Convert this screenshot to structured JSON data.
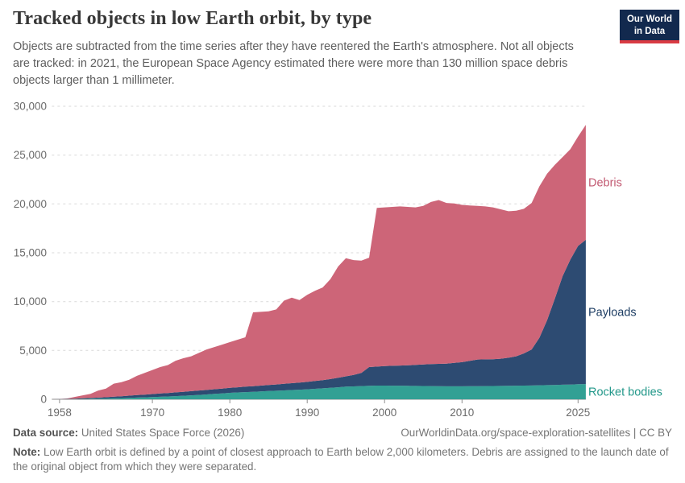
{
  "header": {
    "title": "Tracked objects in low Earth orbit, by type",
    "subtitle": "Objects are subtracted from the time series after they have reentered the Earth's atmosphere. Not all objects are tracked: in 2021, the European Space Agency estimated there were more than 130 million space debris objects larger than 1 millimeter.",
    "logo": {
      "line1": "Our World",
      "line2": "in Data"
    }
  },
  "footer": {
    "source_label": "Data source:",
    "source_value": "United States Space Force (2026)",
    "attribution": "OurWorldinData.org/space-exploration-satellites | CC BY",
    "note_label": "Note:",
    "note_value": "Low Earth orbit is defined by a point of closest approach to Earth below 2,000 kilometers. Debris are assigned to the launch date of the original object from which they were separated."
  },
  "colors": {
    "grid": "#d9d9d9",
    "axis": "#8f8f8f",
    "tick_text": "#6b6b6b",
    "logo_bg": "#12294e",
    "logo_bar": "#d93b43"
  },
  "chart_data": {
    "type": "area",
    "stacked": true,
    "title": "Tracked objects in low Earth orbit, by type",
    "xlabel": "",
    "ylabel": "",
    "xlim": [
      1957,
      2026
    ],
    "ylim": [
      0,
      30000
    ],
    "grid": "dashed horizontal",
    "legend": "labels at right edge of areas",
    "xticks": [
      1958,
      1970,
      1980,
      1990,
      2000,
      2010,
      2025
    ],
    "ytick_values": [
      0,
      5000,
      10000,
      15000,
      20000,
      25000,
      30000
    ],
    "ytick_labels": [
      "0",
      "5,000",
      "10,000",
      "15,000",
      "20,000",
      "25,000",
      "30,000"
    ],
    "x": [
      1957,
      1958,
      1959,
      1960,
      1961,
      1962,
      1963,
      1964,
      1965,
      1966,
      1967,
      1968,
      1969,
      1970,
      1971,
      1972,
      1973,
      1974,
      1975,
      1976,
      1977,
      1978,
      1979,
      1980,
      1981,
      1982,
      1983,
      1984,
      1985,
      1986,
      1987,
      1988,
      1989,
      1990,
      1991,
      1992,
      1993,
      1994,
      1995,
      1996,
      1997,
      1998,
      1999,
      2000,
      2001,
      2002,
      2003,
      2004,
      2005,
      2006,
      2007,
      2008,
      2009,
      2010,
      2011,
      2012,
      2013,
      2014,
      2015,
      2016,
      2017,
      2018,
      2019,
      2020,
      2021,
      2022,
      2023,
      2024,
      2025,
      2026
    ],
    "series": [
      {
        "name": "Rocket bodies",
        "fill": "#32a094",
        "label_color": "#23988a",
        "values": [
          0,
          5,
          15,
          25,
          35,
          50,
          65,
          85,
          105,
          125,
          150,
          175,
          200,
          225,
          255,
          285,
          320,
          360,
          400,
          445,
          495,
          550,
          605,
          660,
          700,
          735,
          770,
          805,
          840,
          875,
          910,
          945,
          980,
          1020,
          1070,
          1120,
          1170,
          1230,
          1290,
          1320,
          1350,
          1380,
          1400,
          1400,
          1395,
          1390,
          1380,
          1370,
          1360,
          1350,
          1340,
          1330,
          1330,
          1330,
          1335,
          1340,
          1350,
          1360,
          1370,
          1380,
          1390,
          1400,
          1410,
          1430,
          1450,
          1470,
          1490,
          1510,
          1540,
          1560
        ]
      },
      {
        "name": "Payloads",
        "fill": "#2d4b72",
        "label_color": "#1d3d63",
        "values": [
          0,
          10,
          25,
          45,
          60,
          80,
          105,
          130,
          160,
          190,
          220,
          250,
          280,
          310,
          335,
          360,
          385,
          410,
          430,
          450,
          465,
          480,
          495,
          510,
          530,
          555,
          575,
          595,
          620,
          645,
          670,
          700,
          730,
          760,
          800,
          840,
          900,
          980,
          1060,
          1180,
          1350,
          1920,
          1950,
          2000,
          2030,
          2060,
          2100,
          2150,
          2200,
          2250,
          2285,
          2320,
          2400,
          2470,
          2600,
          2730,
          2735,
          2740,
          2780,
          2870,
          3010,
          3300,
          3690,
          4870,
          6650,
          8830,
          11110,
          12790,
          14160,
          14770
        ]
      },
      {
        "name": "Debris",
        "fill": "#cd6578",
        "label_color": "#c25a72",
        "values": [
          0,
          15,
          40,
          180,
          305,
          430,
          730,
          885,
          1335,
          1435,
          1630,
          1975,
          2220,
          2465,
          2710,
          2855,
          3245,
          3430,
          3570,
          3855,
          4140,
          4320,
          4500,
          4680,
          4870,
          5060,
          7555,
          7550,
          7540,
          7680,
          8520,
          8755,
          8440,
          8920,
          9230,
          9490,
          10230,
          11390,
          12100,
          11750,
          11500,
          11200,
          16250,
          16250,
          16275,
          16300,
          16220,
          16130,
          16240,
          16600,
          16775,
          16450,
          16320,
          16100,
          15915,
          15730,
          15665,
          15550,
          15300,
          15000,
          14900,
          14800,
          15000,
          15500,
          15000,
          13700,
          12200,
          11300,
          11200,
          11770
        ]
      }
    ]
  }
}
